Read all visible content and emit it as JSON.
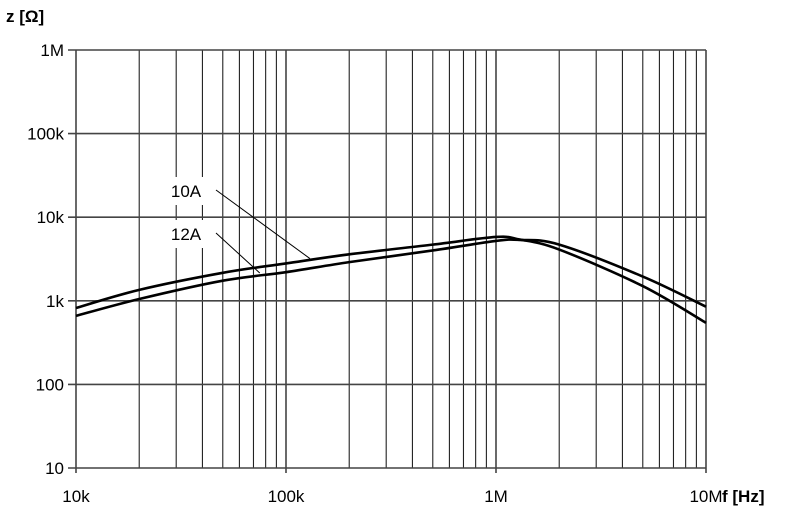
{
  "chart_data": {
    "type": "line",
    "title": "",
    "xlabel": "f [Hz]",
    "ylabel": "z [Ω]",
    "xscale": "log",
    "yscale": "log",
    "xlim": [
      10000,
      10000000
    ],
    "ylim": [
      10,
      1000000
    ],
    "grid": true,
    "x_ticks": [
      {
        "v": 10000,
        "label": "10k"
      },
      {
        "v": 100000,
        "label": "100k"
      },
      {
        "v": 1000000,
        "label": "1M"
      },
      {
        "v": 10000000,
        "label": "10M"
      }
    ],
    "y_ticks": [
      {
        "v": 10,
        "label": "10"
      },
      {
        "v": 100,
        "label": "100"
      },
      {
        "v": 1000,
        "label": "1k"
      },
      {
        "v": 10000,
        "label": "10k"
      },
      {
        "v": 100000,
        "label": "100k"
      },
      {
        "v": 1000000,
        "label": "1M"
      }
    ],
    "series": [
      {
        "name": "10A",
        "x": [
          10000,
          20000,
          50000,
          100000,
          200000,
          500000,
          1000000,
          1300000,
          2000000,
          5000000,
          10000000
        ],
        "y": [
          820,
          1350,
          2160,
          2800,
          3600,
          4700,
          5800,
          5400,
          4100,
          1500,
          545
        ]
      },
      {
        "name": "12A",
        "x": [
          10000,
          20000,
          50000,
          100000,
          200000,
          500000,
          1000000,
          1300000,
          2000000,
          5000000,
          10000000
        ],
        "y": [
          660,
          1050,
          1740,
          2200,
          2900,
          4000,
          5200,
          5350,
          4700,
          1950,
          850
        ]
      }
    ],
    "annotations": [
      {
        "text": "10A",
        "series": "10A",
        "x": 130000,
        "y": 3200
      },
      {
        "text": "12A",
        "series": "12A",
        "x": 75000,
        "y": 2150
      }
    ]
  }
}
